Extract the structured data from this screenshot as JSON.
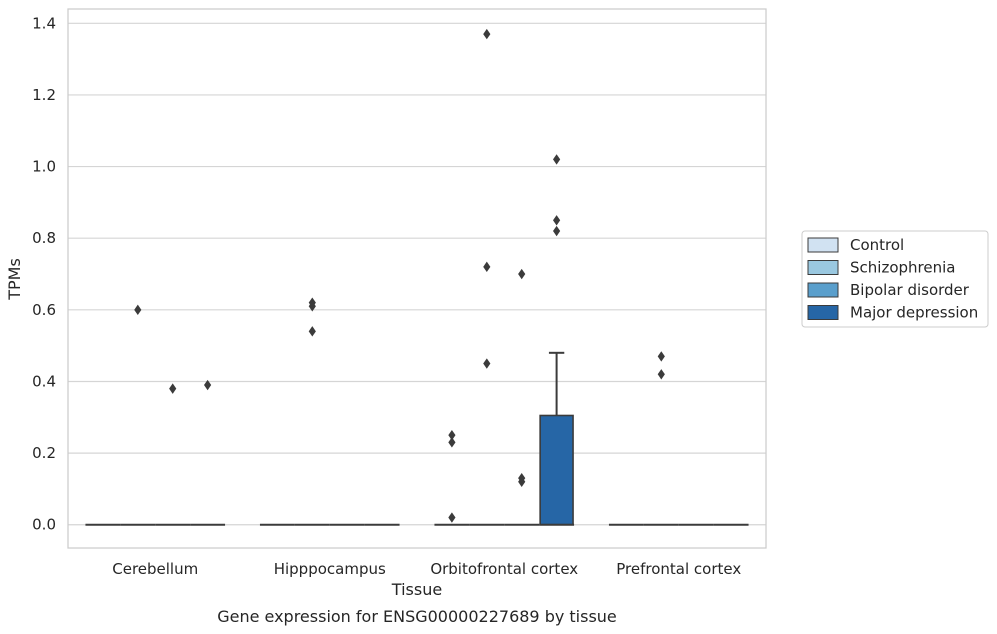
{
  "chart_data": {
    "type": "box",
    "title": "",
    "caption": "Gene expression for ENSG00000227689 by tissue",
    "xlabel": "Tissue",
    "ylabel": "TPMs",
    "ylim": [
      -0.065,
      1.44
    ],
    "yticks": [
      "0.0",
      "0.2",
      "0.4",
      "0.6",
      "0.8",
      "1.0",
      "1.2",
      "1.4"
    ],
    "ytick_values": [
      0.0,
      0.2,
      0.4,
      0.6,
      0.8,
      1.0,
      1.2,
      1.4
    ],
    "grid": "horizontal",
    "legend_position": "right",
    "categories": [
      "Cerebellum",
      "Hipppocampus",
      "Orbitofrontal cortex",
      "Prefrontal cortex"
    ],
    "series": [
      {
        "name": "Control",
        "color": "#d1e2f2",
        "boxes": [
          {
            "q1": 0,
            "median": 0,
            "q3": 0,
            "whisker_low": 0,
            "whisker_high": 0,
            "outliers": []
          },
          {
            "q1": 0,
            "median": 0,
            "q3": 0,
            "whisker_low": 0,
            "whisker_high": 0,
            "outliers": []
          },
          {
            "q1": 0,
            "median": 0,
            "q3": 0,
            "whisker_low": 0,
            "whisker_high": 0,
            "outliers": [
              0.02,
              0.23,
              0.25
            ]
          },
          {
            "q1": 0,
            "median": 0,
            "q3": 0,
            "whisker_low": 0,
            "whisker_high": 0,
            "outliers": []
          }
        ]
      },
      {
        "name": "Schizophrenia",
        "color": "#9ac8e0",
        "boxes": [
          {
            "q1": 0,
            "median": 0,
            "q3": 0,
            "whisker_low": 0,
            "whisker_high": 0,
            "outliers": [
              0.6
            ]
          },
          {
            "q1": 0,
            "median": 0,
            "q3": 0,
            "whisker_low": 0,
            "whisker_high": 0,
            "outliers": [
              0.54,
              0.61,
              0.62
            ]
          },
          {
            "q1": 0,
            "median": 0,
            "q3": 0,
            "whisker_low": 0,
            "whisker_high": 0,
            "outliers": [
              0.45,
              0.72,
              1.37
            ]
          },
          {
            "q1": 0,
            "median": 0,
            "q3": 0,
            "whisker_low": 0,
            "whisker_high": 0,
            "outliers": [
              0.42,
              0.47
            ]
          }
        ]
      },
      {
        "name": "Bipolar disorder",
        "color": "#5a9fcc",
        "boxes": [
          {
            "q1": 0,
            "median": 0,
            "q3": 0,
            "whisker_low": 0,
            "whisker_high": 0,
            "outliers": [
              0.38
            ]
          },
          {
            "q1": 0,
            "median": 0,
            "q3": 0,
            "whisker_low": 0,
            "whisker_high": 0,
            "outliers": []
          },
          {
            "q1": 0,
            "median": 0,
            "q3": 0,
            "whisker_low": 0,
            "whisker_high": 0,
            "outliers": [
              0.12,
              0.13,
              0.7
            ]
          },
          {
            "q1": 0,
            "median": 0,
            "q3": 0,
            "whisker_low": 0,
            "whisker_high": 0,
            "outliers": []
          }
        ]
      },
      {
        "name": "Major depression",
        "color": "#2666a6",
        "boxes": [
          {
            "q1": 0,
            "median": 0,
            "q3": 0,
            "whisker_low": 0,
            "whisker_high": 0,
            "outliers": [
              0.39
            ]
          },
          {
            "q1": 0,
            "median": 0,
            "q3": 0,
            "whisker_low": 0,
            "whisker_high": 0,
            "outliers": []
          },
          {
            "q1": 0,
            "median": 0,
            "q3": 0.305,
            "whisker_low": 0,
            "whisker_high": 0.48,
            "outliers": [
              0.82,
              0.85,
              1.02
            ]
          },
          {
            "q1": 0,
            "median": 0,
            "q3": 0,
            "whisker_low": 0,
            "whisker_high": 0,
            "outliers": []
          }
        ]
      }
    ]
  }
}
